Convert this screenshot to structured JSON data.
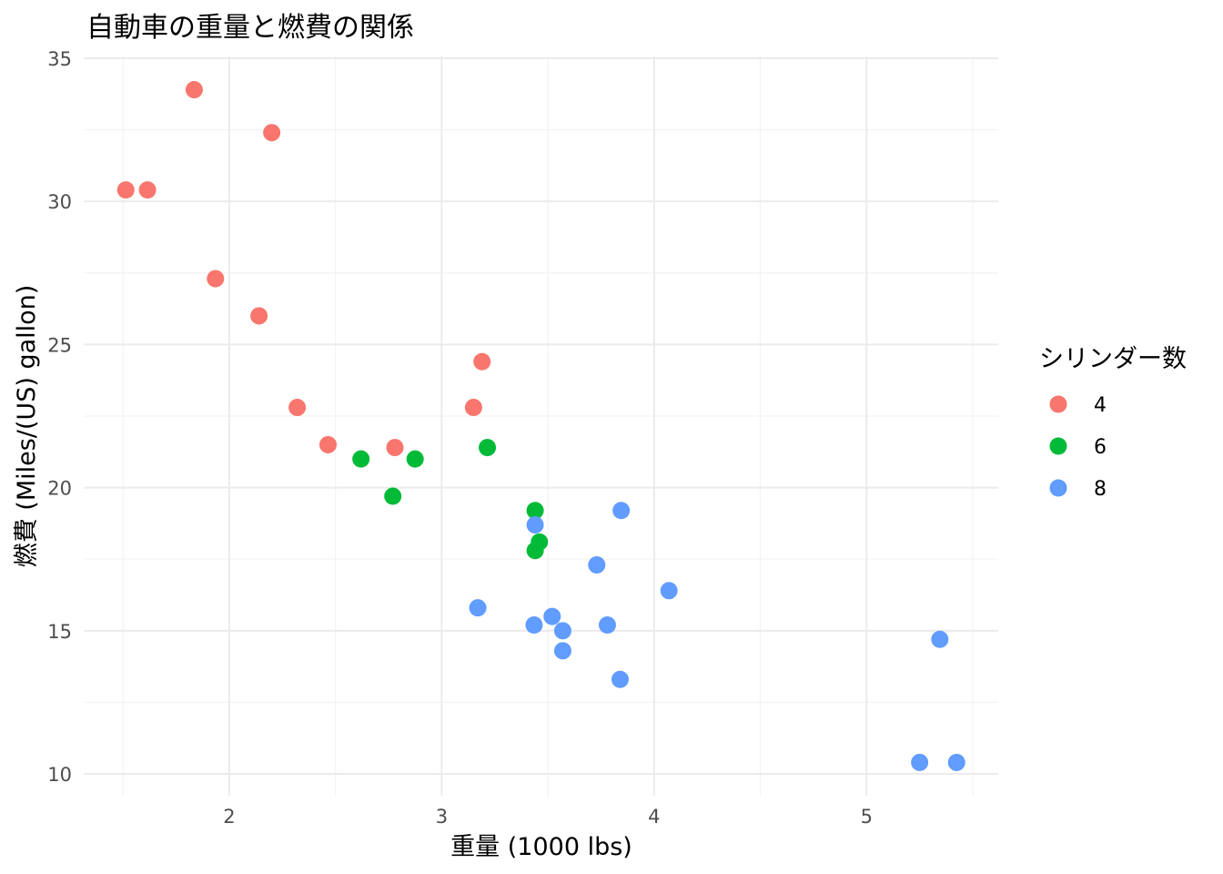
{
  "chart_data": {
    "type": "scatter",
    "title": "自動車の重量と燃費の関係",
    "xlabel": "重量 (1000 lbs)",
    "ylabel": "燃費 (Miles/(US) gallon)",
    "xlim": [
      1.317,
      5.62
    ],
    "ylim": [
      9.225,
      35.075
    ],
    "xticks": [
      2,
      3,
      4,
      5
    ],
    "yticks": [
      10,
      15,
      20,
      25,
      30,
      35
    ],
    "grid": true,
    "legend": {
      "title": "シリンダー数",
      "position": "right"
    },
    "series": [
      {
        "name": "4",
        "color": "#F8766D",
        "x": [
          2.32,
          3.19,
          3.15,
          2.2,
          1.615,
          1.835,
          2.465,
          1.935,
          2.14,
          1.513,
          2.78
        ],
        "y": [
          22.8,
          24.4,
          22.8,
          32.4,
          30.4,
          33.9,
          21.5,
          27.3,
          26.0,
          30.4,
          21.4
        ]
      },
      {
        "name": "6",
        "color": "#00BA38",
        "x": [
          2.62,
          2.875,
          3.215,
          3.46,
          3.44,
          3.44,
          2.77
        ],
        "y": [
          21.0,
          21.0,
          21.4,
          18.1,
          19.2,
          17.8,
          19.7
        ]
      },
      {
        "name": "8",
        "color": "#619CFF",
        "x": [
          3.44,
          3.57,
          4.07,
          3.73,
          3.78,
          5.25,
          5.424,
          5.345,
          3.52,
          3.435,
          3.84,
          3.845,
          3.17,
          3.57
        ],
        "y": [
          18.7,
          14.3,
          16.4,
          17.3,
          15.2,
          10.4,
          10.4,
          14.7,
          15.5,
          15.2,
          13.3,
          19.2,
          15.8,
          15.0
        ]
      }
    ]
  }
}
